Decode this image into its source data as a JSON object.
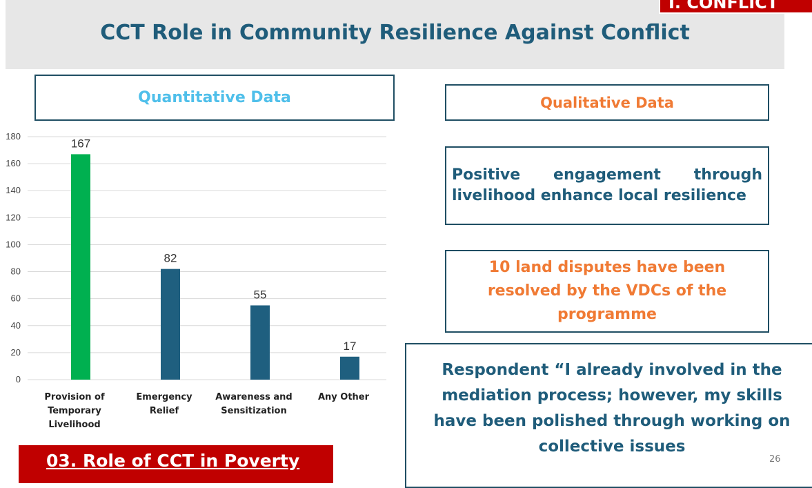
{
  "header": {
    "title": "CCT Role in Community Resilience Against Conflict",
    "tag": "I. CONFLICT"
  },
  "quantitative": {
    "label": "Quantitative Data"
  },
  "chart_data": {
    "type": "bar",
    "categories": [
      "Provision of Temporary Livelihood",
      "Emergency Relief",
      "Awareness and Sensitization",
      "Any Other"
    ],
    "values": [
      167,
      82,
      55,
      17
    ],
    "colors": [
      "#00b050",
      "#1f5f7f",
      "#1f5f7f",
      "#1f5f7f"
    ],
    "ylim": [
      0,
      180
    ],
    "yticks": [
      0,
      20,
      40,
      60,
      80,
      100,
      120,
      140,
      160,
      180
    ],
    "grid": true
  },
  "qualitative": {
    "label": "Qualitative Data",
    "boxes": [
      "Positive engagement through livelihood enhance local resilience",
      "10 land disputes have been resolved by the VDCs of the programme",
      "Respondent “I already involved in the mediation process; however, my skills have been polished through working on collective issues"
    ]
  },
  "footer": {
    "section": "03. Role of CCT in Poverty",
    "page": "26"
  }
}
